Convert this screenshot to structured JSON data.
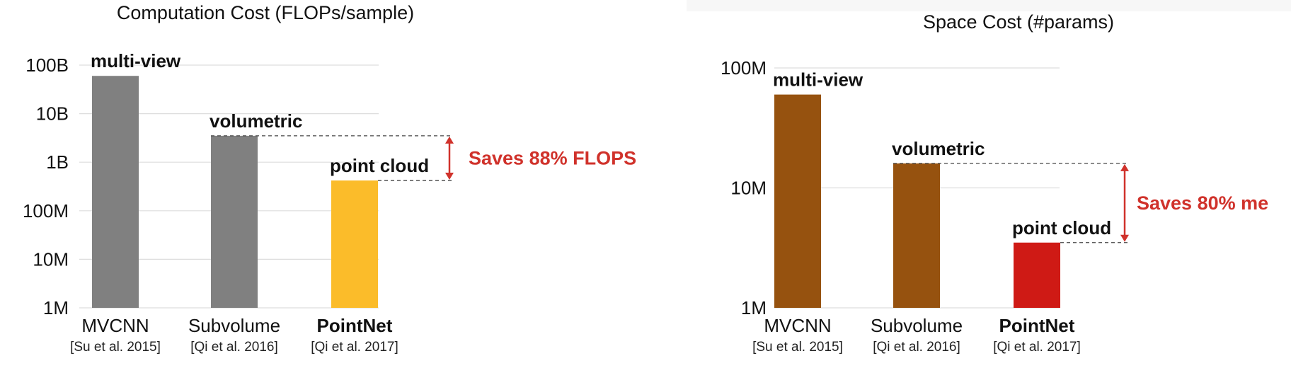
{
  "chart_data": [
    {
      "type": "bar",
      "title": "Computation Cost (FLOPs/sample)",
      "scale": "log",
      "ylim": [
        1000000,
        100000000000
      ],
      "ytick_labels": [
        "1M",
        "10M",
        "100M",
        "1B",
        "10B",
        "100B"
      ],
      "grid": true,
      "categories": [
        "MVCNN",
        "Subvolume",
        "PointNet"
      ],
      "citations": [
        "[Su et al. 2015]",
        "[Qi et al. 2016]",
        "[Qi et al. 2017]"
      ],
      "bar_labels": [
        "multi-view",
        "volumetric",
        "point cloud"
      ],
      "values": [
        60000000000,
        3500000000,
        420000000
      ],
      "colors": [
        "#808080",
        "#808080",
        "#FBBC2A"
      ],
      "annotation": "Saves 88% FLOPS",
      "annotation_color": "#D0322B"
    },
    {
      "type": "bar",
      "title": "Space Cost (#params)",
      "scale": "log",
      "ylim": [
        1000000,
        100000000
      ],
      "ytick_labels": [
        "1M",
        "10M",
        "100M"
      ],
      "grid": true,
      "categories": [
        "MVCNN",
        "Subvolume",
        "PointNet"
      ],
      "citations": [
        "[Su et al. 2015]",
        "[Qi et al. 2016]",
        "[Qi et al. 2017]"
      ],
      "bar_labels": [
        "multi-view",
        "volumetric",
        "point cloud"
      ],
      "values": [
        60000000,
        16000000,
        3500000
      ],
      "colors": [
        "#96520F",
        "#96520F",
        "#CF1A15"
      ],
      "annotation": "Saves 80% me",
      "annotation_color": "#D0322B"
    }
  ]
}
